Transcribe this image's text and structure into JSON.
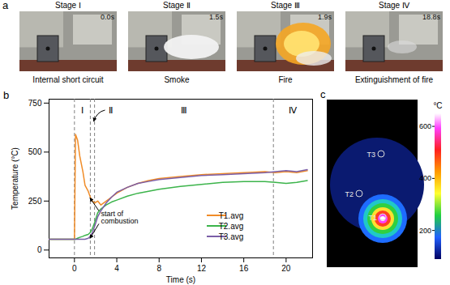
{
  "panel_a": {
    "label": "a",
    "frames": [
      {
        "stage": "Stage Ⅰ",
        "time": "0.0s",
        "caption": "Internal short circuit"
      },
      {
        "stage": "Stage Ⅱ",
        "time": "1.5s",
        "caption": "Smoke"
      },
      {
        "stage": "Stage Ⅲ",
        "time": "1.9s",
        "caption": "Fire"
      },
      {
        "stage": "Stage Ⅳ",
        "time": "18.8s",
        "caption": "Extinguishment of fire"
      }
    ]
  },
  "chart_data": {
    "type": "line",
    "label": "b",
    "xlabel": "Time (s)",
    "ylabel": "Temperature (°C)",
    "x": [
      -2.4,
      -1,
      0,
      0.1,
      0.3,
      0.5,
      0.8,
      1.0,
      1.3,
      1.5,
      1.7,
      1.9,
      2.2,
      2.5,
      3,
      3.5,
      4,
      5,
      6,
      7,
      8,
      10,
      12,
      14,
      16,
      18,
      19,
      20,
      21,
      22
    ],
    "series": [
      {
        "name": "T1.avg",
        "color": "#f08c28",
        "values": [
          55,
          55,
          55,
          590,
          560,
          480,
          400,
          330,
          300,
          270,
          250,
          240,
          250,
          230,
          250,
          270,
          290,
          320,
          340,
          355,
          365,
          375,
          385,
          390,
          395,
          400,
          395,
          400,
          395,
          405
        ]
      },
      {
        "name": "T2.avg",
        "color": "#3cb44b",
        "values": [
          55,
          55,
          55,
          55,
          60,
          65,
          70,
          75,
          80,
          90,
          110,
          140,
          190,
          210,
          230,
          245,
          255,
          275,
          290,
          300,
          310,
          325,
          335,
          345,
          350,
          350,
          345,
          340,
          345,
          355
        ]
      },
      {
        "name": "T3.avg",
        "color": "#7b5ea7",
        "values": [
          55,
          55,
          55,
          55,
          55,
          55,
          55,
          55,
          60,
          70,
          90,
          120,
          170,
          200,
          240,
          270,
          295,
          320,
          340,
          350,
          360,
          370,
          380,
          385,
          390,
          395,
          400,
          405,
          400,
          410
        ]
      }
    ],
    "xlim": [
      -2.4,
      22.5
    ],
    "xticks": [
      0,
      4,
      8,
      12,
      16,
      20
    ],
    "ylim": [
      -40,
      770
    ],
    "yticks": [
      0,
      250,
      500,
      750
    ],
    "stages": {
      "names": [
        "Ⅰ",
        "Ⅱ",
        "Ⅲ",
        "Ⅳ"
      ],
      "boundaries": [
        0,
        1.5,
        1.9,
        18.8
      ]
    },
    "annotations": [
      {
        "text": "start of combustion",
        "x": 2.5,
        "y": 165
      }
    ],
    "legend": "lower right"
  },
  "panel_c": {
    "label": "c",
    "points": [
      "T1",
      "T2",
      "T3"
    ],
    "colorbar": {
      "title": "°C",
      "range": [
        90,
        650
      ],
      "ticks": [
        200,
        400,
        600
      ]
    }
  }
}
